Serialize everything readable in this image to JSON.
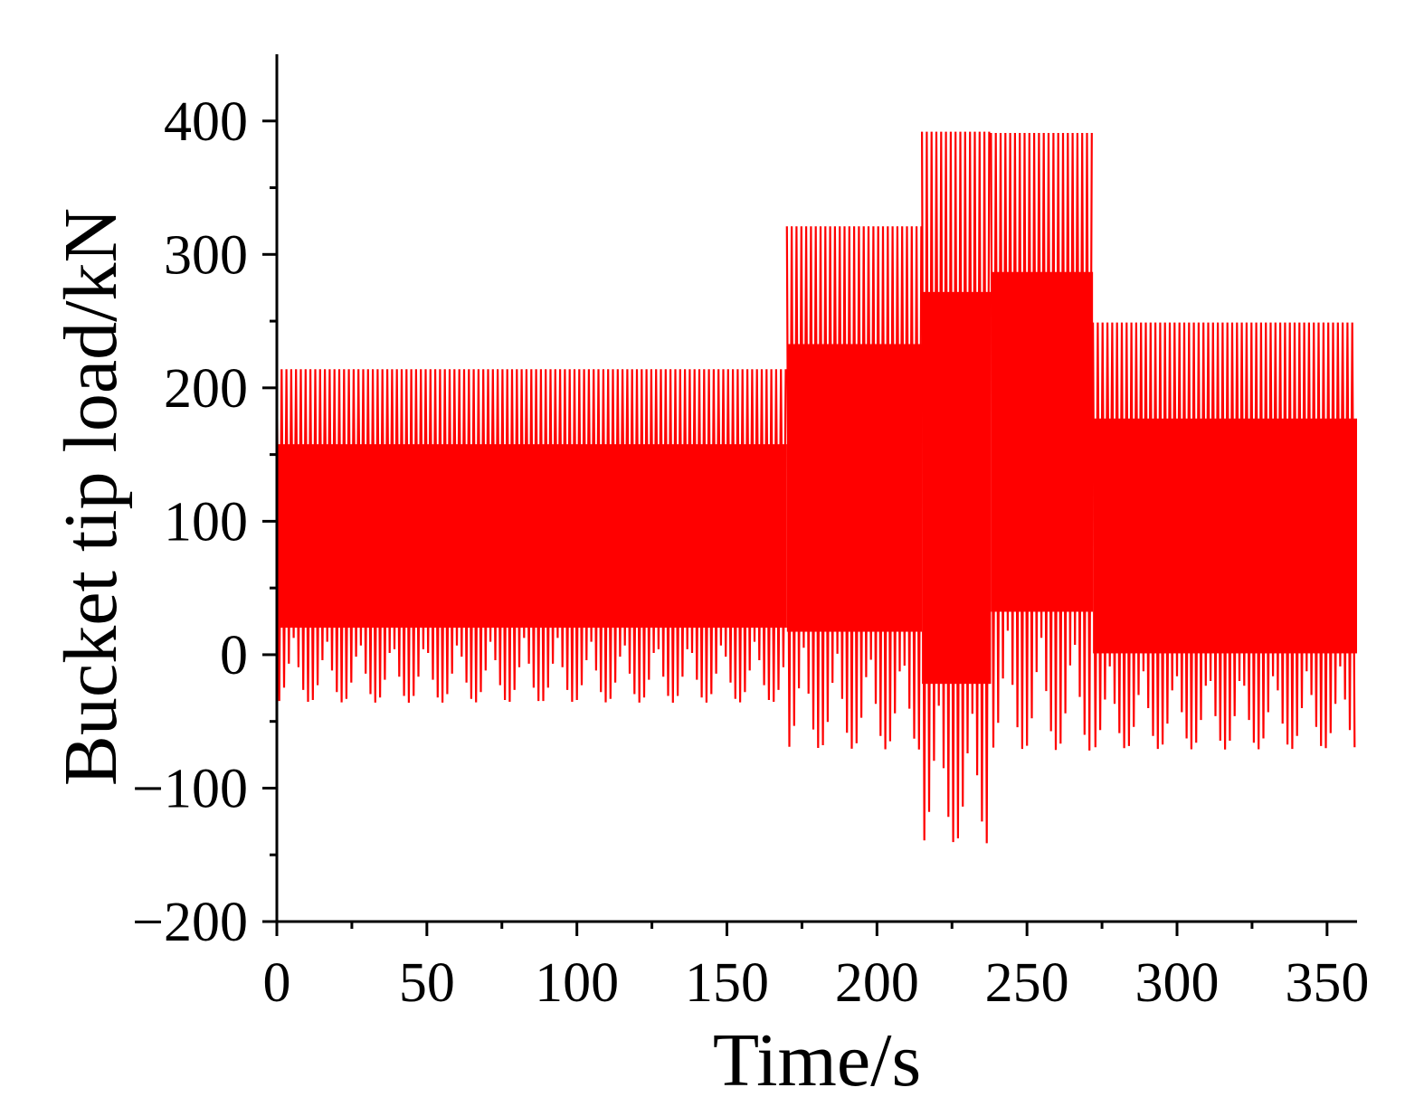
{
  "chart_data": {
    "type": "line",
    "title": "",
    "xlabel": "Time/s",
    "ylabel": "Bucket tip load/kN",
    "xlim": [
      0,
      360
    ],
    "ylim": [
      -200,
      450
    ],
    "xticks": [
      0,
      50,
      100,
      150,
      200,
      250,
      300,
      350
    ],
    "yticks": [
      -200,
      -100,
      0,
      100,
      200,
      300,
      400
    ],
    "grid": false,
    "legend": "none",
    "series": [
      {
        "color": "#ff0000",
        "style": "dense oscillation envelope",
        "segments": [
          {
            "t_start": 0,
            "t_end": 170,
            "max": 214,
            "min": -36
          },
          {
            "t_start": 170,
            "t_end": 215,
            "max": 321,
            "min": -71
          },
          {
            "t_start": 215,
            "t_end": 238,
            "max": 392,
            "min": -142
          },
          {
            "t_start": 238,
            "t_end": 272,
            "max": 391,
            "min": -72
          },
          {
            "t_start": 272,
            "t_end": 360,
            "max": 249,
            "min": -71
          }
        ]
      }
    ]
  }
}
